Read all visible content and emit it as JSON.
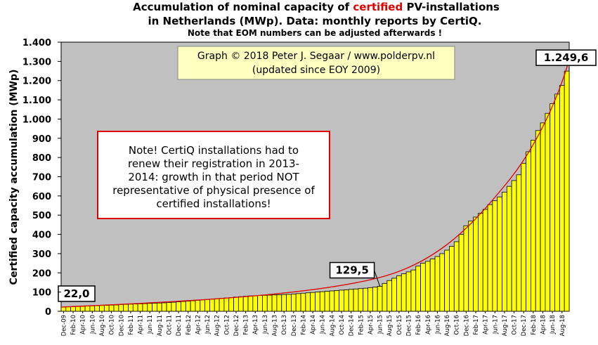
{
  "chart_data": {
    "type": "bar",
    "title_start": "Accumulation  of nominal  capacity  of",
    "title_highlight": "certified",
    "title_end": "PV-installations",
    "title_line2": "in Netherlands (MWp). Data: monthly  reports by CertiQ.",
    "subtitle": "Note that EOM numbers can be adjusted afterwards  !",
    "ylabel": "Certified capacity accumulation (MWp)",
    "credit": [
      "Graph © 2018 Peter J. Segaar / www.polderpv.nl",
      "(updated since EOY 2009)"
    ],
    "note": [
      "Note! CertiQ installations had to",
      "renew their registration in 2013-",
      "2014:  growth in that period NOT",
      "representative of physical presence of",
      "certified installations!"
    ],
    "color": "#ffff00",
    "ylim": [
      0,
      1400
    ],
    "yticks": [
      0,
      100,
      200,
      300,
      400,
      500,
      600,
      700,
      800,
      900,
      {
        "value": 1000,
        "label": "1.000"
      },
      {
        "value": 1100,
        "label": "1.100"
      },
      {
        "value": 1200,
        "label": "1.200"
      },
      {
        "value": 1300,
        "label": "1.300"
      },
      {
        "value": 1400,
        "label": "1.400"
      }
    ],
    "grid": false,
    "categories": [
      "Dec-09",
      null,
      "Feb-10",
      null,
      "Apr-10",
      null,
      "Jun-10",
      null,
      "Aug-10",
      null,
      "Oct-10",
      null,
      "Dec-10",
      null,
      "Feb-11",
      null,
      "Apr-11",
      null,
      "Jun-11",
      null,
      "Aug-11",
      null,
      "Oct-11",
      null,
      "Dec-11",
      null,
      "Feb-12",
      null,
      "Apr-12",
      null,
      "Jun-12",
      null,
      "Aug-12",
      null,
      "Oct-12",
      null,
      "Dec-12",
      null,
      "Feb-13",
      null,
      "Apr-13",
      null,
      "Jun-13",
      null,
      "Aug-13",
      null,
      "Oct-13",
      null,
      "Dec-13",
      null,
      "Feb-14",
      null,
      "Apr-14",
      null,
      "Jun-14",
      null,
      "Aug-14",
      null,
      "Oct-14",
      null,
      "Dec-14",
      null,
      "Feb-15",
      null,
      "Apr-15",
      null,
      "Jun-15",
      null,
      "Aug-15",
      null,
      "Oct-15",
      null,
      "Dec-15",
      null,
      "Feb-16",
      null,
      "Apr-16",
      null,
      "Jun-16",
      null,
      "Aug-16",
      null,
      "Oct-16",
      null,
      "Dec-16",
      null,
      "Feb-17",
      null,
      "Apr-17",
      null,
      "Jun-17",
      null,
      "Aug-17",
      null,
      "Oct-17",
      null,
      "Dec-17",
      null,
      "Feb-18",
      null,
      "Apr-18",
      null,
      "Jun-18",
      null,
      "Aug-18",
      null
    ],
    "values": [
      22.0,
      23,
      24,
      25,
      26,
      27,
      28,
      29,
      30,
      31,
      32,
      33,
      35,
      36,
      37,
      38,
      39,
      40,
      41,
      42,
      43,
      44,
      46,
      47,
      49,
      51,
      53,
      55,
      57,
      59,
      61,
      63,
      65,
      67,
      69,
      71,
      74,
      76,
      78,
      80,
      81,
      82,
      83,
      84,
      85,
      86,
      87,
      88,
      90,
      92,
      94,
      96,
      98,
      100,
      102,
      104,
      106,
      108,
      110,
      112,
      114,
      116,
      118,
      120,
      123,
      126,
      129.5,
      145,
      160,
      172,
      185,
      195,
      205,
      215,
      235,
      250,
      260,
      272,
      285,
      300,
      318,
      338,
      362,
      400,
      445,
      470,
      490,
      510,
      530,
      555,
      575,
      595,
      620,
      650,
      680,
      710,
      770,
      830,
      890,
      940,
      980,
      1030,
      1080,
      1130,
      1175,
      1249.6
    ],
    "value_labels": [
      "22,0",
      null,
      null,
      null,
      null,
      null,
      null,
      null,
      null,
      null,
      null,
      null,
      null,
      null,
      null,
      null,
      null,
      null,
      null,
      null,
      null,
      null,
      null,
      null,
      null,
      null,
      null,
      null,
      null,
      null,
      null,
      null,
      null,
      null,
      null,
      null,
      null,
      null,
      null,
      null,
      null,
      null,
      null,
      null,
      null,
      null,
      null,
      null,
      null,
      null,
      null,
      null,
      null,
      null,
      null,
      null,
      null,
      null,
      null,
      null,
      null,
      null,
      null,
      null,
      null,
      null,
      "129,5",
      null,
      null,
      null,
      null,
      null,
      null,
      null,
      null,
      null,
      null,
      null,
      null,
      null,
      null,
      null,
      null,
      null,
      null,
      null,
      null,
      null,
      null,
      null,
      null,
      null,
      null,
      null,
      null,
      null,
      null,
      null,
      null,
      null,
      null,
      null,
      null,
      null,
      null,
      "1.249,6"
    ]
  }
}
